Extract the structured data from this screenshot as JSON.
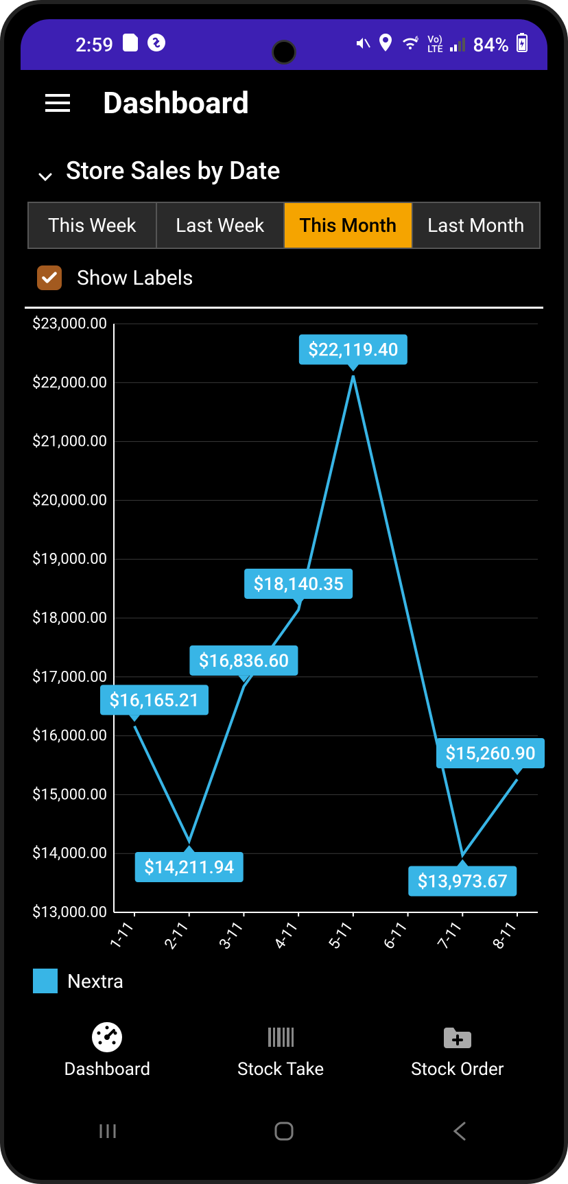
{
  "status_bar": {
    "time": "2:59",
    "battery_pct": "84%",
    "icons": [
      "sd-card",
      "shazam",
      "mute",
      "location",
      "wifi",
      "volte",
      "signal",
      "battery"
    ]
  },
  "app_bar": {
    "title": "Dashboard"
  },
  "section": {
    "title": "Store Sales by Date",
    "tabs": [
      "This Week",
      "Last Week",
      "This Month",
      "Last Month"
    ],
    "active_tab_index": 2,
    "show_labels_label": "Show Labels",
    "show_labels_checked": true
  },
  "chart": {
    "type": "line",
    "background_color": "#000000",
    "grid_color": "#3a3a3a",
    "axis_color": "#ffffff",
    "series_color": "#38b5e6",
    "label_box_color": "#38b5e6",
    "label_text_color": "#ffffff",
    "axis_label_fontsize": 22,
    "ylim": [
      13000,
      23000
    ],
    "ytick_step": 1000,
    "ytick_labels": [
      "$13,000.00",
      "$14,000.00",
      "$15,000.00",
      "$16,000.00",
      "$17,000.00",
      "$18,000.00",
      "$19,000.00",
      "$20,000.00",
      "$21,000.00",
      "$22,000.00",
      "$23,000.00"
    ],
    "x_categories": [
      "1-11",
      "2-11",
      "3-11",
      "4-11",
      "5-11",
      "6-11",
      "7-11",
      "8-11"
    ],
    "series": {
      "name": "Nextra",
      "values": [
        16165.21,
        14211.94,
        16836.6,
        18140.35,
        22119.4,
        null,
        13973.67,
        15260.9
      ],
      "display_labels": [
        "$16,165.21",
        "$14,211.94",
        "$16,836.60",
        "$18,140.35",
        "$22,119.40",
        null,
        "$13,973.67",
        "$15,260.90"
      ]
    },
    "line_width": 4,
    "label_box_radius": 4,
    "label_fontsize": 26
  },
  "legend": {
    "series_name": "Nextra"
  },
  "bottom_nav": {
    "items": [
      {
        "label": "Dashboard",
        "icon": "gauge",
        "active": true
      },
      {
        "label": "Stock Take",
        "icon": "barcode",
        "active": false
      },
      {
        "label": "Stock Order",
        "icon": "folder-plus",
        "active": false
      }
    ]
  }
}
